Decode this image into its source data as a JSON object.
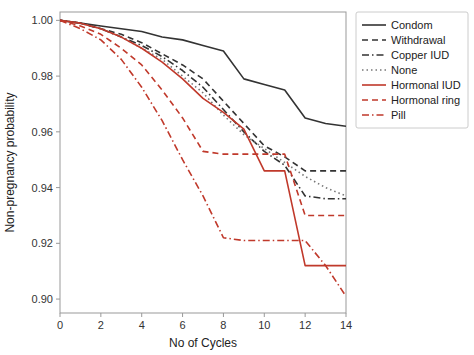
{
  "chart_data": {
    "type": "line",
    "xlabel": "No of Cycles",
    "ylabel": "Non-pregnancy probability",
    "x": [
      0,
      1,
      2,
      3,
      4,
      5,
      6,
      7,
      8,
      9,
      10,
      11,
      12,
      13,
      14
    ],
    "xlim": [
      0,
      14
    ],
    "xticks": [
      0,
      2,
      4,
      6,
      8,
      10,
      12,
      14
    ],
    "ylim": [
      0.895,
      1.003
    ],
    "yticks": [
      {
        "value": 0.9,
        "label": "0.90"
      },
      0.92,
      0.94,
      0.96,
      0.98,
      {
        "value": 1,
        "label": "1.00"
      }
    ],
    "grid": false,
    "legend": "upper right",
    "series": [
      {
        "name": "Condom",
        "color": "#333333",
        "line_style": "solid",
        "values": [
          1.0,
          0.999,
          0.998,
          0.997,
          0.996,
          0.994,
          0.993,
          0.991,
          0.989,
          0.979,
          0.977,
          0.975,
          0.965,
          0.963,
          0.962
        ]
      },
      {
        "name": "Withdrawal",
        "color": "#333333",
        "line_style": "dashed",
        "values": [
          1.0,
          0.999,
          0.997,
          0.995,
          0.992,
          0.988,
          0.984,
          0.979,
          0.971,
          0.963,
          0.955,
          0.951,
          0.946,
          0.946,
          0.946
        ]
      },
      {
        "name": "Copper IUD",
        "color": "#333333",
        "line_style": "dashdot",
        "values": [
          1.0,
          0.999,
          0.997,
          0.994,
          0.991,
          0.987,
          0.982,
          0.976,
          0.968,
          0.96,
          0.953,
          0.948,
          0.937,
          0.936,
          0.936
        ]
      },
      {
        "name": "None",
        "color": "#777777",
        "line_style": "dotted",
        "values": [
          1.0,
          0.999,
          0.997,
          0.994,
          0.99,
          0.986,
          0.98,
          0.974,
          0.966,
          0.959,
          0.954,
          0.949,
          0.944,
          0.94,
          0.937
        ]
      },
      {
        "name": "Hormonal IUD",
        "color": "#c0392b",
        "line_style": "solid",
        "values": [
          1.0,
          0.999,
          0.997,
          0.994,
          0.99,
          0.985,
          0.979,
          0.972,
          0.967,
          0.961,
          0.946,
          0.946,
          0.912,
          0.912,
          0.912
        ]
      },
      {
        "name": "Hormonal ring",
        "color": "#c0392b",
        "line_style": "dashed",
        "values": [
          1.0,
          0.998,
          0.995,
          0.99,
          0.984,
          0.975,
          0.965,
          0.953,
          0.952,
          0.952,
          0.952,
          0.952,
          0.93,
          0.93,
          0.93
        ]
      },
      {
        "name": "Pill",
        "color": "#c0392b",
        "line_style": "dashdot",
        "values": [
          1.0,
          0.997,
          0.993,
          0.986,
          0.976,
          0.964,
          0.95,
          0.937,
          0.922,
          0.921,
          0.921,
          0.921,
          0.921,
          0.912,
          0.901
        ]
      }
    ]
  }
}
